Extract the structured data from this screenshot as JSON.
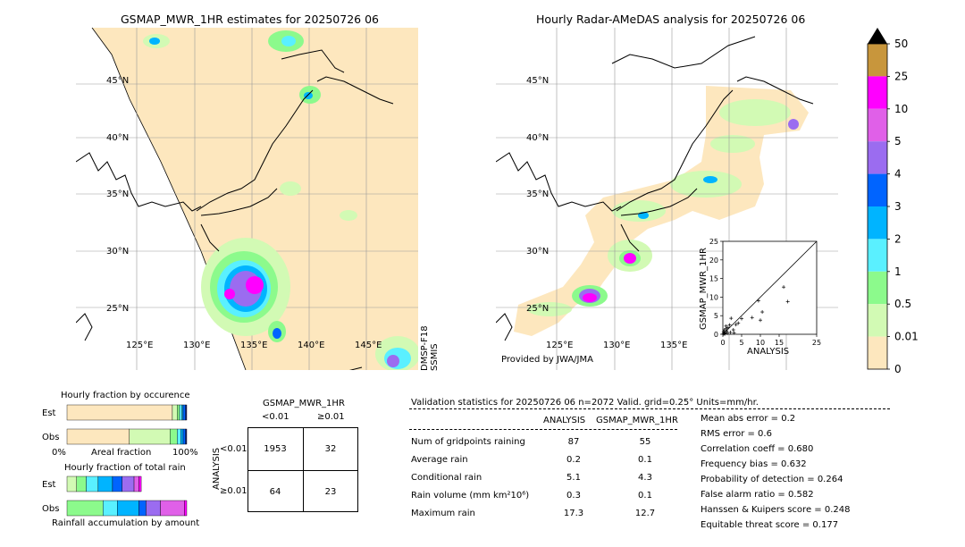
{
  "left_map": {
    "title": "GSMAP_MWR_1HR estimates for 20250726 06",
    "lat_labels": [
      "45°N",
      "40°N",
      "35°N",
      "30°N",
      "25°N"
    ],
    "lon_labels": [
      "125°E",
      "130°E",
      "135°E",
      "140°E",
      "145°E"
    ],
    "side_label_1": "DMSP-F18",
    "side_label_2": "SSMIS"
  },
  "right_map": {
    "title": "Hourly Radar-AMeDAS analysis for 20250726 06",
    "lat_labels": [
      "45°N",
      "40°N",
      "35°N",
      "30°N",
      "25°N"
    ],
    "lon_labels": [
      "125°E",
      "130°E",
      "135°E"
    ],
    "credit": "Provided by JWA/JMA"
  },
  "colorbar": {
    "labels": [
      "50",
      "25",
      "10",
      "5",
      "4",
      "3",
      "2",
      "1",
      "0.5",
      "0.01",
      "0"
    ],
    "colors": [
      "#c8963c",
      "#ff00ff",
      "#e060e8",
      "#9b6cf0",
      "#0064ff",
      "#00b4ff",
      "#5af0ff",
      "#8cfa8c",
      "#d2fab4",
      "#fde7be"
    ]
  },
  "chart_data": [
    {
      "type": "scatter",
      "xlabel": "ANALYSIS",
      "ylabel": "GSMAP_MWR_1HR",
      "xlim": [
        0,
        25
      ],
      "ylim": [
        0,
        25
      ],
      "xticks": [
        "0",
        "5",
        "10",
        "15",
        "25"
      ],
      "yticks": [
        "0",
        "5",
        "10",
        "15",
        "20",
        "25"
      ],
      "points": [
        [
          17.3,
          8.8
        ],
        [
          16.2,
          12.7
        ],
        [
          9.5,
          9.0
        ],
        [
          10.0,
          3.8
        ],
        [
          10.5,
          6.0
        ],
        [
          7.8,
          4.5
        ],
        [
          5.0,
          4.2
        ],
        [
          4.1,
          3.0
        ],
        [
          3.5,
          2.6
        ],
        [
          2.8,
          1.2
        ],
        [
          2.2,
          4.3
        ],
        [
          1.8,
          2.5
        ],
        [
          1.4,
          1.8
        ],
        [
          1.0,
          0.9
        ],
        [
          0.8,
          2.2
        ],
        [
          0.6,
          0.4
        ],
        [
          0.4,
          1.2
        ],
        [
          0.3,
          0.2
        ],
        [
          0.2,
          0.6
        ],
        [
          0.1,
          0.1
        ],
        [
          1.2,
          0.3
        ],
        [
          2.0,
          0.5
        ],
        [
          0.5,
          0.1
        ],
        [
          0.9,
          1.5
        ],
        [
          3.0,
          0.4
        ]
      ]
    },
    {
      "type": "bar",
      "title": "Hourly fraction by occurence",
      "categories": [
        "Est",
        "Obs"
      ],
      "xlabel": "Areal fraction",
      "xtick_left": "0%",
      "xtick_right": "100%",
      "segments": {
        "Est": [
          0.88,
          0.04,
          0.02,
          0.02,
          0.01,
          0.02,
          0.01
        ],
        "Obs": [
          0.52,
          0.34,
          0.06,
          0.03,
          0.02,
          0.02,
          0.01
        ]
      },
      "segment_colors": [
        "#fde7be",
        "#d2fab4",
        "#8cfa8c",
        "#5af0ff",
        "#00b4ff",
        "#0064ff",
        "#1e1e64"
      ]
    },
    {
      "type": "bar",
      "title": "Hourly fraction of total rain",
      "categories": [
        "Est",
        "Obs"
      ],
      "xlabel": "Rainfall accumulation by amount",
      "segments": {
        "Est": [
          0.08,
          0.08,
          0.1,
          0.12,
          0.08,
          0.1,
          0.04,
          0.02
        ],
        "Obs": [
          0.0,
          0.3,
          0.12,
          0.18,
          0.06,
          0.12,
          0.2,
          0.02
        ]
      },
      "segment_colors": [
        "#d2fab4",
        "#8cfa8c",
        "#5af0ff",
        "#00b4ff",
        "#0064ff",
        "#9b6cf0",
        "#e060e8",
        "#ff00ff"
      ]
    },
    {
      "type": "table",
      "title": "GSMAP_MWR_1HR",
      "col_headers": [
        "<0.01",
        "≥0.01"
      ],
      "row_axis": "ANALYSIS",
      "row_headers": [
        "<0.01",
        "≥0.01"
      ],
      "cells": [
        [
          "1953",
          "32"
        ],
        [
          "64",
          "23"
        ]
      ]
    }
  ],
  "validation": {
    "header": "Validation statistics for 20250726 06  n=2072 Valid. grid=0.25° Units=mm/hr.",
    "col_analysis": "ANALYSIS",
    "col_gsmap": "GSMAP_MWR_1HR",
    "rows": [
      {
        "label": "Num of gridpoints raining",
        "a": "87",
        "g": "55"
      },
      {
        "label": "Average rain",
        "a": "0.2",
        "g": "0.1"
      },
      {
        "label": "Conditional rain",
        "a": "5.1",
        "g": "4.3"
      },
      {
        "label": "Rain volume (mm km²10⁶)",
        "a": "0.3",
        "g": "0.1"
      },
      {
        "label": "Maximum rain",
        "a": "17.3",
        "g": "12.7"
      }
    ],
    "scores": [
      "Mean abs error =    0.2",
      "RMS error =    0.6",
      "Correlation coeff =  0.680",
      "Frequency bias =  0.632",
      "Probability of detection =  0.264",
      "False alarm ratio =  0.582",
      "Hanssen & Kuipers score =  0.248",
      "Equitable threat score =  0.177"
    ]
  }
}
